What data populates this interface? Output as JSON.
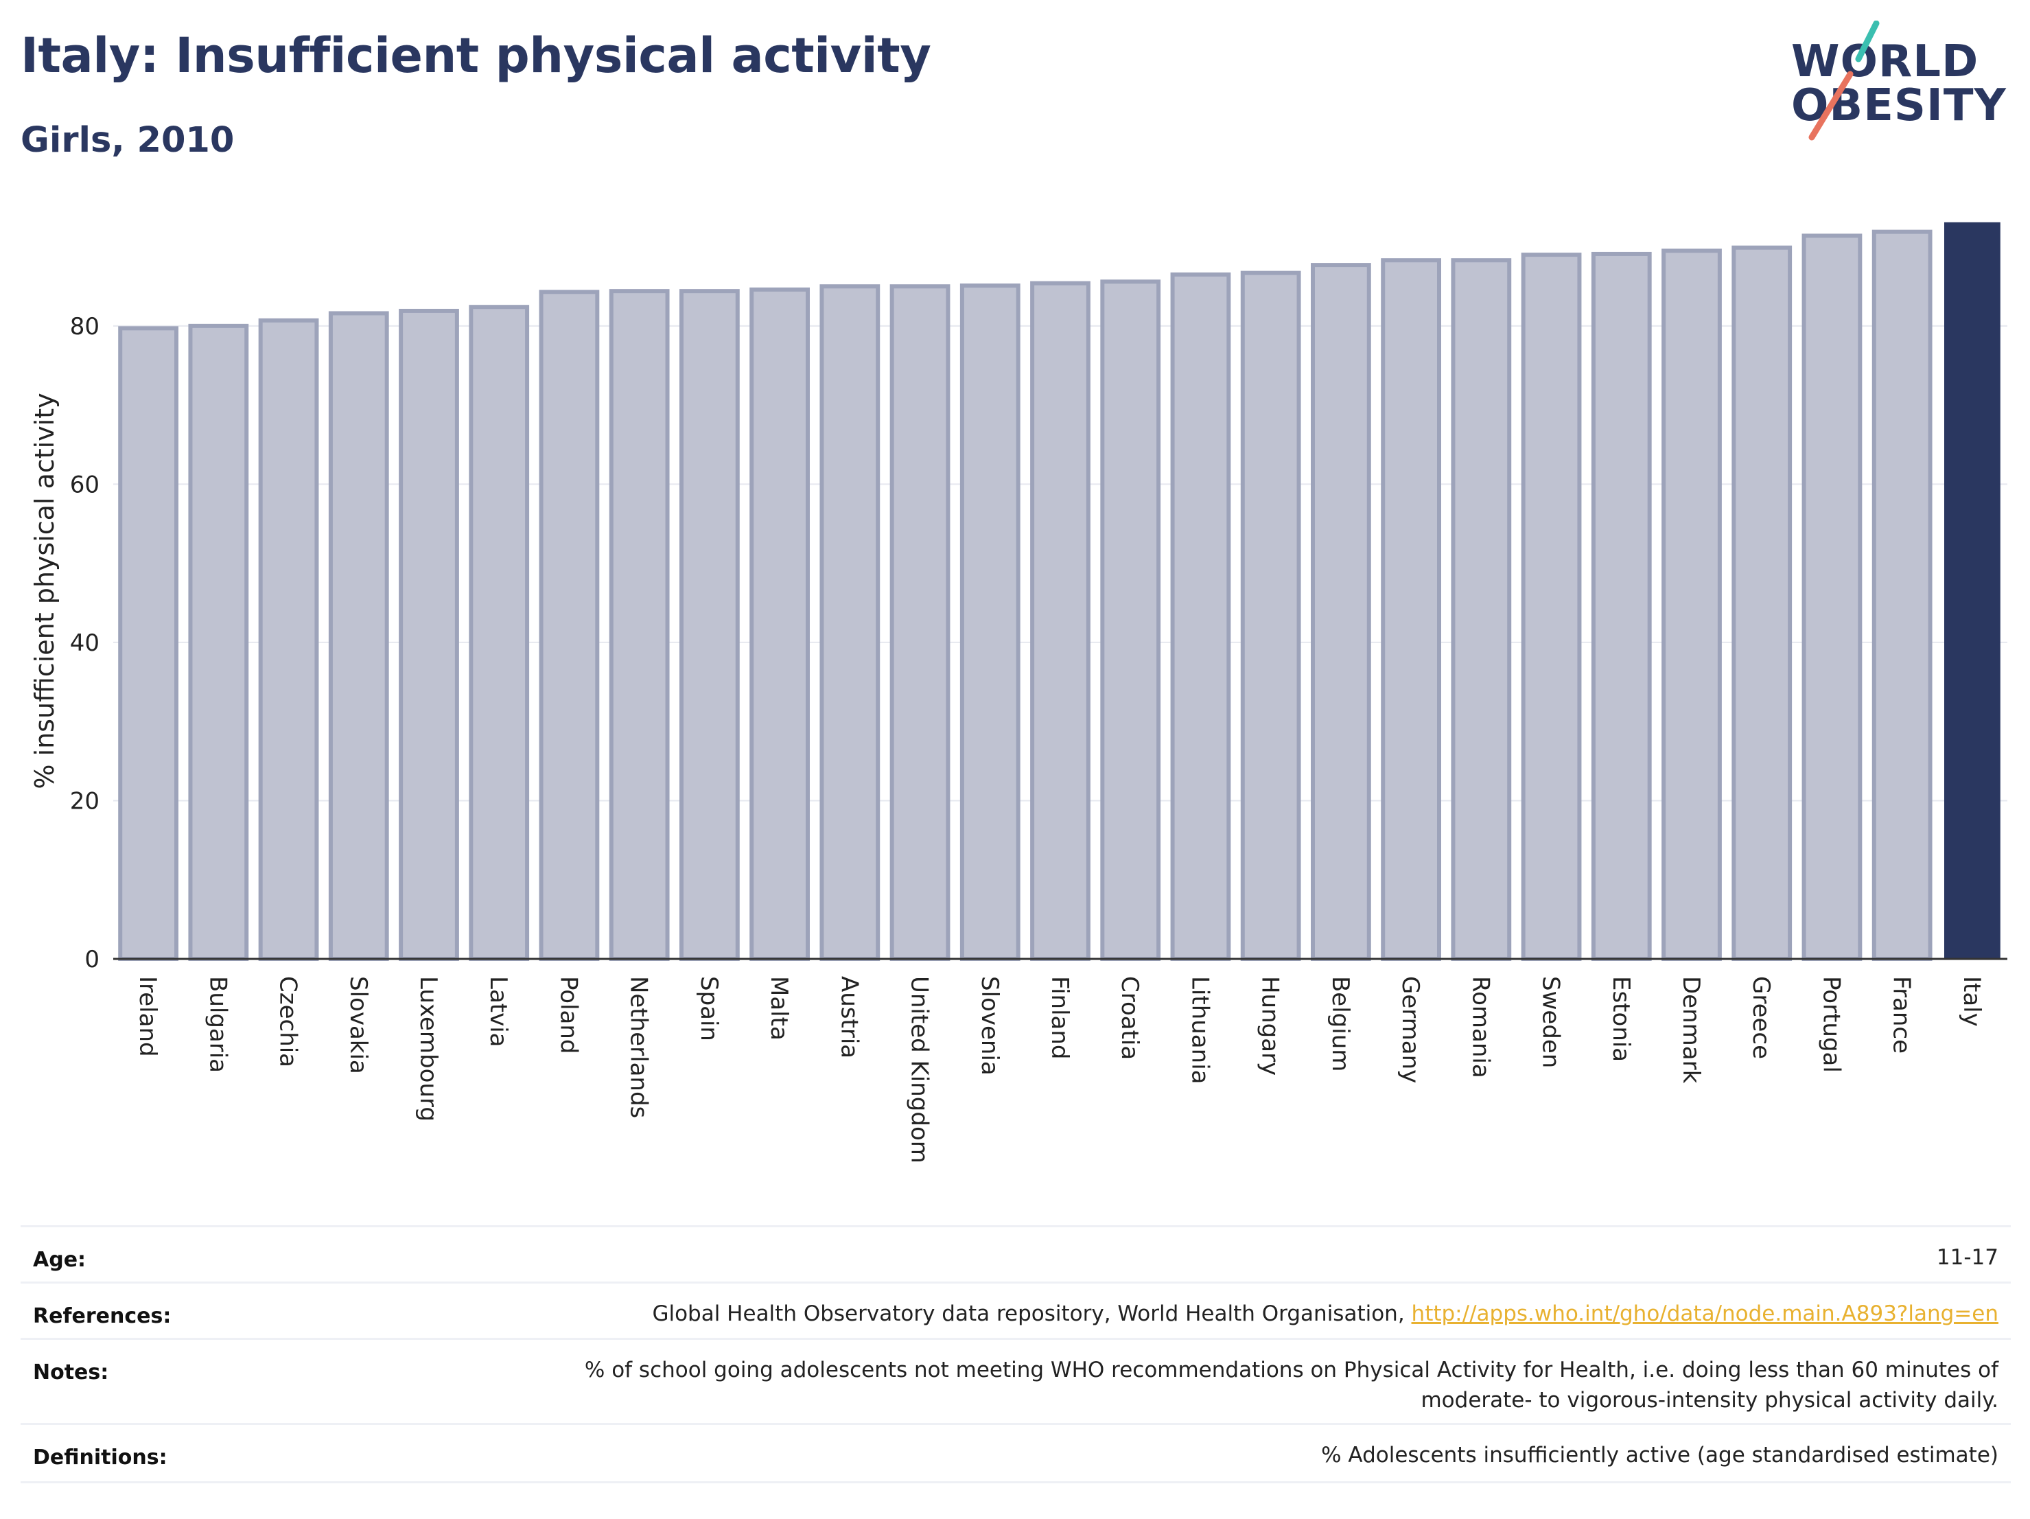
{
  "header": {
    "title": "Italy: Insufficient physical activity",
    "subtitle": "Girls, 2010"
  },
  "logo": {
    "line1": "WORLD",
    "line2": "OBESITY",
    "accent_teal": "#3bbfb0",
    "accent_coral": "#e8735e"
  },
  "chart_data": {
    "type": "bar",
    "ylabel": "% insufficient physical activity",
    "xlabel": "",
    "ylim": [
      0,
      93
    ],
    "yticks": [
      0,
      20,
      40,
      60,
      80
    ],
    "grid": true,
    "categories": [
      "Ireland",
      "Bulgaria",
      "Czechia",
      "Slovakia",
      "Luxembourg",
      "Latvia",
      "Poland",
      "Netherlands",
      "Spain",
      "Malta",
      "Austria",
      "United Kingdom",
      "Slovenia",
      "Finland",
      "Croatia",
      "Lithuania",
      "Hungary",
      "Belgium",
      "Germany",
      "Romania",
      "Sweden",
      "Estonia",
      "Denmark",
      "Greece",
      "Portugal",
      "France",
      "Italy"
    ],
    "values": [
      79.7,
      80.0,
      80.7,
      81.6,
      81.9,
      82.4,
      84.3,
      84.4,
      84.4,
      84.6,
      85.0,
      85.0,
      85.1,
      85.4,
      85.6,
      86.5,
      86.7,
      87.7,
      88.3,
      88.3,
      89.0,
      89.1,
      89.5,
      89.9,
      91.4,
      91.9,
      93.1
    ],
    "highlight": "Italy",
    "colors": {
      "bar": "#bfc2d1",
      "bar_edge": "#9da3ba",
      "highlight": "#2a3760",
      "axis": "#333333",
      "grid": "#e6e8ef"
    }
  },
  "info": {
    "age_label": "Age:",
    "age_value": "11-17",
    "references_label": "References:",
    "references_text": "Global Health Observatory data repository, World Health Organisation,",
    "references_link": "http://apps.who.int/gho/data/node.main.A893?lang=en",
    "notes_label": "Notes:",
    "notes_line1": "% of school going adolescents not meeting WHO recommendations on Physical Activity for Health, i.e. doing less than 60 minutes of",
    "notes_line2": "moderate- to vigorous-intensity physical activity daily.",
    "definitions_label": "Definitions:",
    "definitions_value": "% Adolescents insufficiently active (age standardised estimate)"
  }
}
